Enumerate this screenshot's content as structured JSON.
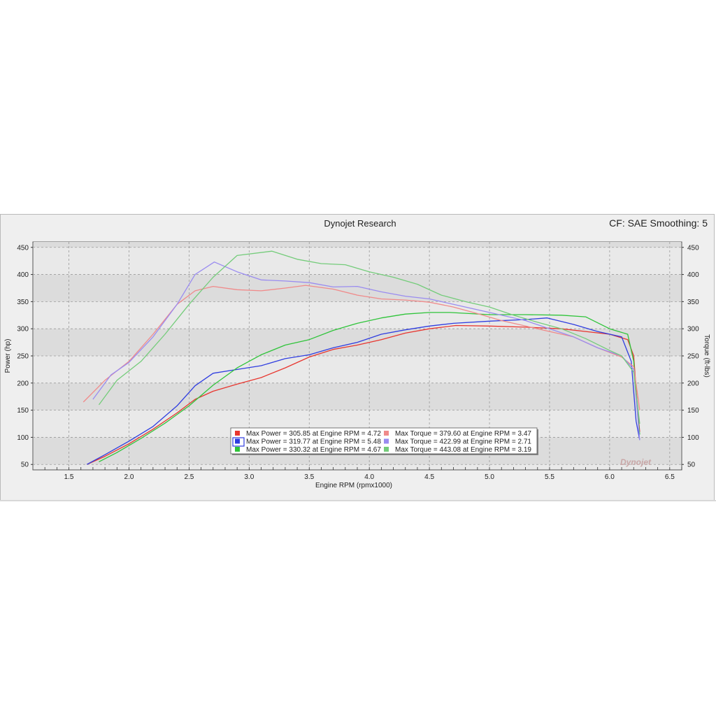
{
  "header": {
    "title": "Dynojet Research",
    "settings": "CF: SAE Smoothing: 5"
  },
  "colors": {
    "power_1": "#e8362f",
    "power_2": "#2f3de0",
    "power_3": "#2fc43a",
    "torque_1": "#f08a8a",
    "torque_2": "#9a8cf0",
    "torque_3": "#74cc7a"
  },
  "chart_data": {
    "type": "line",
    "xlabel": "Engine RPM (rpmx1000)",
    "ylabel_left": "Power (hp)",
    "ylabel_right": "Torque (ft-lbs)",
    "xlim": [
      1.2,
      6.6
    ],
    "ylim": [
      40,
      460
    ],
    "x_ticks": [
      "1.5",
      "2.0",
      "2.5",
      "3.0",
      "3.5",
      "4.0",
      "4.5",
      "5.0",
      "5.5",
      "6.0",
      "6.5"
    ],
    "y_ticks": [
      "50",
      "100",
      "150",
      "200",
      "250",
      "300",
      "350",
      "400",
      "450"
    ],
    "grid": true,
    "legend_position": "bottom-center",
    "legend": [
      "Max Power = 305.85 at Engine RPM = 4.72",
      "Max Torque = 379.60 at Engine RPM = 3.47",
      "Max Power = 319.77 at Engine RPM = 5.48",
      "Max Torque = 422.99 at Engine RPM = 2.71",
      "Max Power = 330.32 at Engine RPM = 4.67",
      "Max Torque = 443.08 at Engine RPM = 3.19"
    ],
    "series": [
      {
        "key": "power_1",
        "x": [
          1.65,
          1.8,
          2.0,
          2.2,
          2.4,
          2.55,
          2.7,
          2.9,
          3.1,
          3.3,
          3.5,
          3.7,
          3.9,
          4.1,
          4.3,
          4.5,
          4.72,
          5.0,
          5.3,
          5.6,
          5.8,
          6.0,
          6.15,
          6.2,
          6.23,
          6.25
        ],
        "values": [
          50,
          65,
          88,
          115,
          145,
          170,
          185,
          198,
          210,
          228,
          248,
          262,
          270,
          280,
          292,
          300,
          306,
          305,
          303,
          300,
          295,
          290,
          280,
          250,
          160,
          110
        ]
      },
      {
        "key": "power_2",
        "x": [
          1.65,
          1.8,
          2.0,
          2.2,
          2.4,
          2.55,
          2.7,
          2.9,
          3.1,
          3.3,
          3.5,
          3.7,
          3.9,
          4.1,
          4.3,
          4.5,
          4.7,
          5.0,
          5.3,
          5.48,
          5.7,
          5.9,
          6.1,
          6.18,
          6.22,
          6.25
        ],
        "values": [
          50,
          68,
          93,
          120,
          158,
          195,
          218,
          225,
          232,
          245,
          252,
          265,
          275,
          290,
          298,
          305,
          310,
          314,
          317,
          320,
          308,
          295,
          285,
          240,
          130,
          95
        ]
      },
      {
        "key": "power_3",
        "x": [
          1.75,
          1.9,
          2.1,
          2.3,
          2.5,
          2.7,
          2.9,
          3.1,
          3.3,
          3.5,
          3.7,
          3.9,
          4.1,
          4.3,
          4.5,
          4.67,
          5.0,
          5.3,
          5.6,
          5.8,
          6.0,
          6.15,
          6.2,
          6.23,
          6.25
        ],
        "values": [
          55,
          72,
          98,
          126,
          158,
          196,
          228,
          252,
          270,
          280,
          297,
          310,
          320,
          327,
          330,
          330,
          326,
          326,
          325,
          322,
          300,
          290,
          240,
          150,
          105
        ]
      },
      {
        "key": "torque_1",
        "x": [
          1.62,
          1.8,
          2.0,
          2.2,
          2.4,
          2.55,
          2.7,
          2.9,
          3.1,
          3.3,
          3.47,
          3.7,
          3.9,
          4.1,
          4.3,
          4.5,
          4.7,
          4.9,
          5.1,
          5.3,
          5.5,
          5.7,
          5.9,
          6.1,
          6.2,
          6.25
        ],
        "values": [
          165,
          205,
          240,
          290,
          345,
          370,
          378,
          372,
          370,
          375,
          380,
          373,
          362,
          355,
          353,
          349,
          340,
          328,
          315,
          305,
          295,
          285,
          265,
          248,
          230,
          150
        ]
      },
      {
        "key": "torque_2",
        "x": [
          1.7,
          1.85,
          2.0,
          2.2,
          2.4,
          2.55,
          2.71,
          2.9,
          3.1,
          3.3,
          3.5,
          3.7,
          3.9,
          4.1,
          4.3,
          4.5,
          4.7,
          4.9,
          5.1,
          5.3,
          5.5,
          5.7,
          5.9,
          6.1,
          6.2,
          6.25
        ],
        "values": [
          170,
          215,
          238,
          285,
          345,
          400,
          423,
          405,
          390,
          388,
          385,
          377,
          378,
          368,
          360,
          355,
          345,
          335,
          325,
          315,
          300,
          285,
          265,
          250,
          225,
          95
        ]
      },
      {
        "key": "torque_3",
        "x": [
          1.75,
          1.9,
          2.1,
          2.3,
          2.5,
          2.7,
          2.9,
          3.19,
          3.4,
          3.6,
          3.8,
          4.0,
          4.2,
          4.4,
          4.6,
          4.8,
          5.0,
          5.2,
          5.4,
          5.6,
          5.8,
          6.0,
          6.1,
          6.2,
          6.25
        ],
        "values": [
          160,
          205,
          240,
          290,
          345,
          395,
          435,
          443,
          428,
          420,
          418,
          405,
          395,
          382,
          362,
          350,
          340,
          325,
          312,
          300,
          282,
          260,
          250,
          220,
          125
        ]
      }
    ]
  }
}
